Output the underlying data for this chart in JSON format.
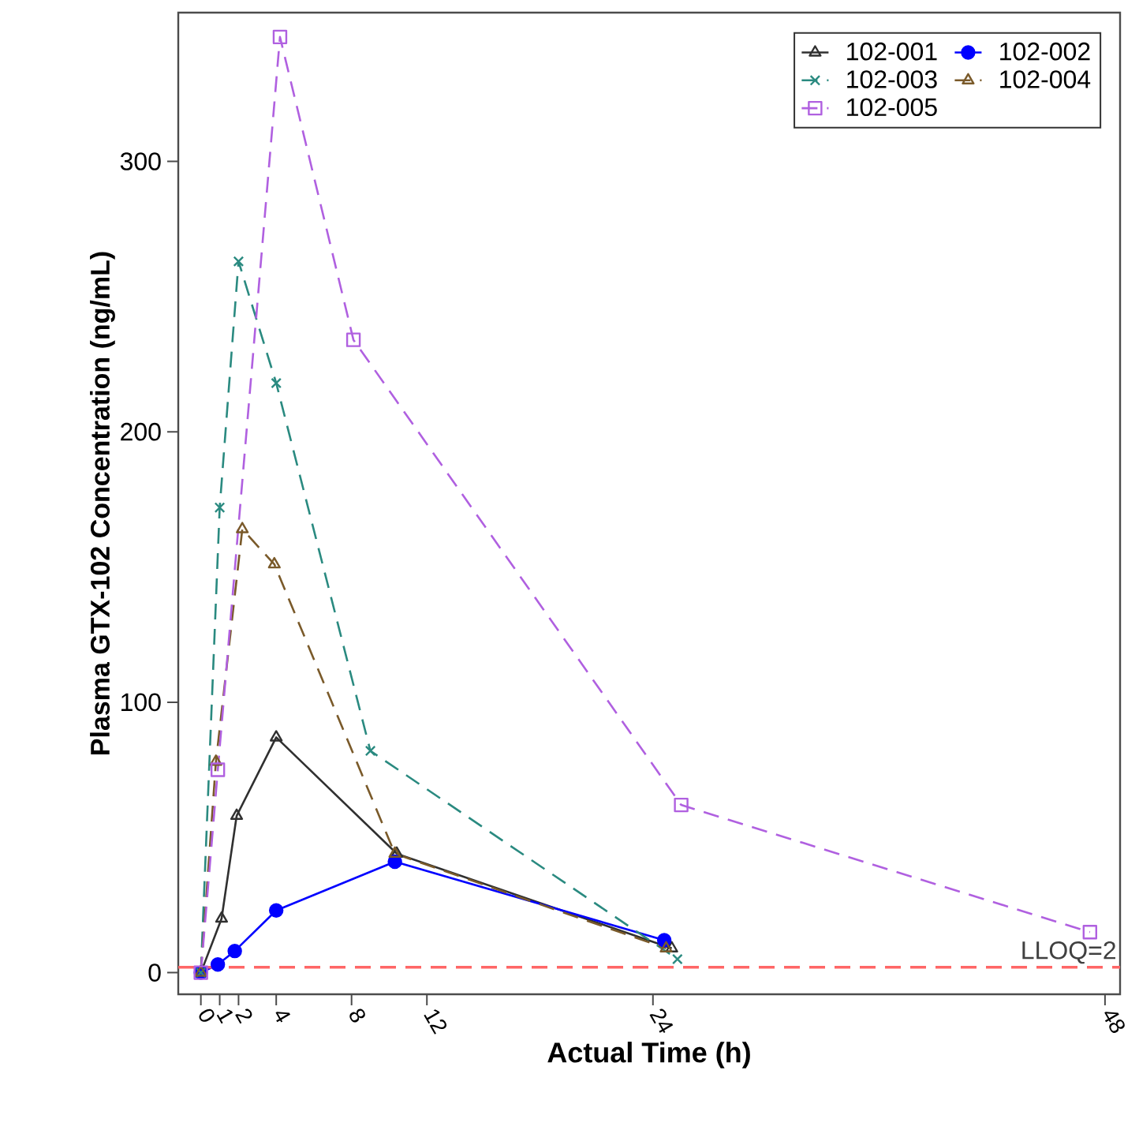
{
  "chart_data": {
    "type": "line",
    "xlabel": "Actual Time (h)",
    "ylabel": "Plasma GTX-102 Concentration (ng/mL)",
    "xlim": [
      -1.2,
      48.8
    ],
    "ylim": [
      -8,
      355
    ],
    "xticks": [
      0,
      1,
      2,
      4,
      8,
      12,
      24,
      48
    ],
    "yticks": [
      0,
      100,
      200,
      300
    ],
    "legend": "top right",
    "grid": false,
    "ref_lines": [
      {
        "axis": "y",
        "value": 2,
        "label": "LLOQ=2",
        "color": "#ff6666",
        "line_style": "dashed"
      }
    ],
    "series": [
      {
        "name": "102-001",
        "color": "#303030",
        "marker": "triangle",
        "line_style": "solid",
        "x": [
          0,
          1.1,
          1.9,
          4,
          10.4,
          25
        ],
        "values": [
          0,
          20,
          58,
          87,
          44,
          9
        ]
      },
      {
        "name": "102-002",
        "color": "#0000ff",
        "marker": "circle",
        "line_style": "solid",
        "x": [
          0,
          0.9,
          1.8,
          4,
          10.3,
          24.6
        ],
        "values": [
          0,
          3,
          8,
          23,
          41,
          12
        ]
      },
      {
        "name": "102-003",
        "color": "#2a8a80",
        "marker": "cross",
        "line_style": "dashed",
        "x": [
          0,
          1,
          2,
          4,
          9,
          25.3
        ],
        "values": [
          0,
          172,
          263,
          218,
          82,
          5
        ]
      },
      {
        "name": "102-004",
        "color": "#7a5a2a",
        "marker": "triangle",
        "line_style": "dashed",
        "x": [
          0,
          0.8,
          2.2,
          3.9,
          10.3,
          24.7
        ],
        "values": [
          0,
          78,
          164,
          151,
          44,
          9
        ]
      },
      {
        "name": "102-005",
        "color": "#b060e0",
        "marker": "square",
        "line_style": "dashed",
        "x": [
          0,
          0.9,
          4.2,
          8.1,
          25.5,
          47.2
        ],
        "values": [
          0,
          75,
          346,
          234,
          62,
          15
        ]
      }
    ]
  }
}
